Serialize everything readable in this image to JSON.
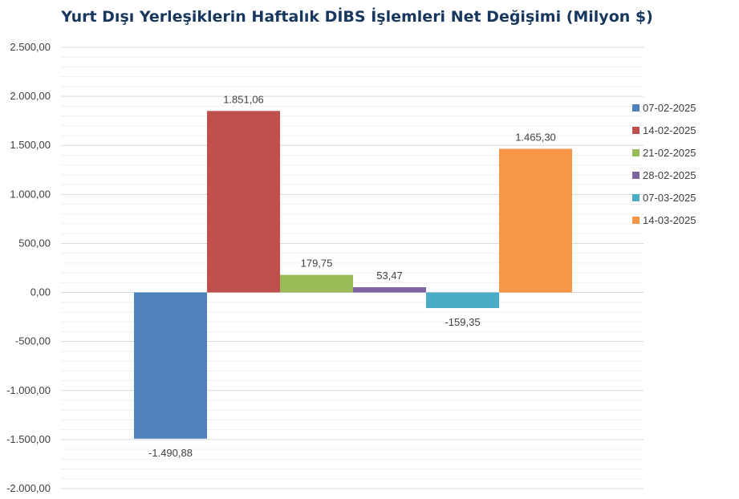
{
  "chart_data": {
    "type": "bar",
    "title": "Yurt Dışı Yerleşiklerin Haftalık DİBS İşlemleri Net Değişimi (Milyon $)",
    "xlabel": "",
    "ylabel": "",
    "ylim": [
      -2000,
      2500
    ],
    "y_ticks": [
      2500,
      2000,
      1500,
      1000,
      500,
      0,
      -500,
      -1000,
      -1500,
      -2000
    ],
    "y_tick_labels": [
      "2.500,00",
      "2.000,00",
      "1.500,00",
      "1.000,00",
      "500,00",
      "0,00",
      "-500,00",
      "-1.000,00",
      "-1.500,00",
      "-2.000,00"
    ],
    "grid": true,
    "legend": "right",
    "series": [
      {
        "name": "07-02-2025",
        "value": -1490.88,
        "label": "-1.490,88",
        "color": "#4f81bd"
      },
      {
        "name": "14-02-2025",
        "value": 1851.06,
        "label": "1.851,06",
        "color": "#c0504d"
      },
      {
        "name": "21-02-2025",
        "value": 179.75,
        "label": "179,75",
        "color": "#9bbb59"
      },
      {
        "name": "28-02-2025",
        "value": 53.47,
        "label": "53,47",
        "color": "#8064a2"
      },
      {
        "name": "07-03-2025",
        "value": -159.35,
        "label": "-159,35",
        "color": "#4bacc6"
      },
      {
        "name": "14-03-2025",
        "value": 1465.3,
        "label": "1.465,30",
        "color": "#f79646"
      }
    ]
  }
}
